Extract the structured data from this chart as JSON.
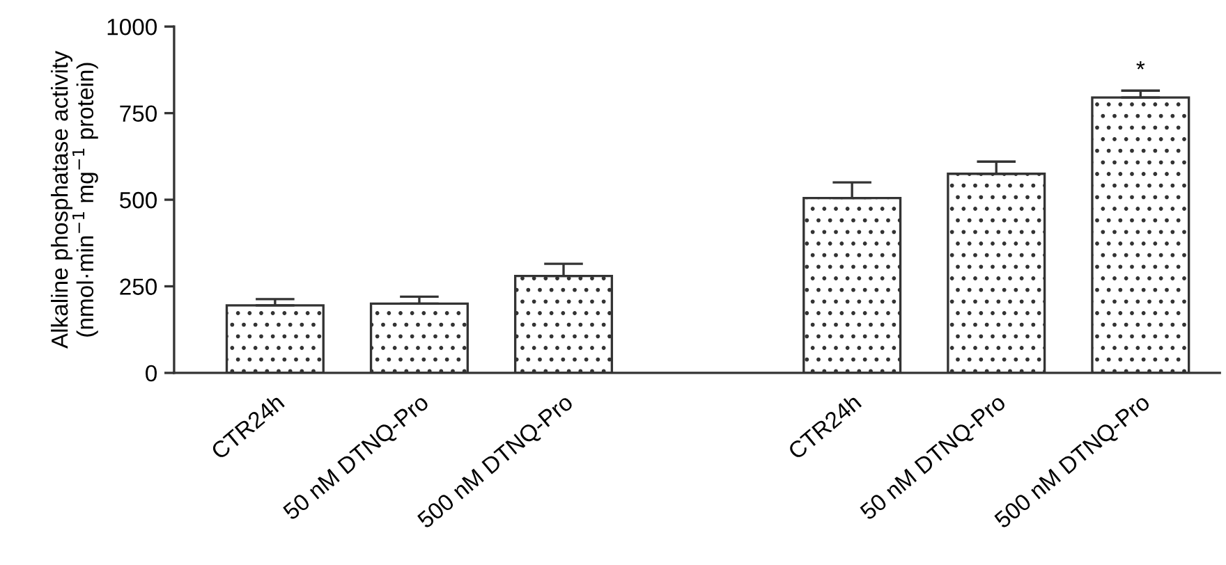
{
  "chart_data": {
    "type": "bar",
    "ylabel": "Alkaline phosphatase activity (nmol·min$^{−1}$ mg$^{−1}$ protein)",
    "categories": [
      "CTR24h",
      "50 nM DTNQ-Pro",
      "500 nM DTNQ-Pro",
      null,
      "CTR24h",
      "50 nM DTNQ-Pro",
      "500 nM DTNQ-Pro"
    ],
    "values": [
      195,
      200,
      280,
      null,
      505,
      575,
      795
    ],
    "errors": [
      [
        195,
        213
      ],
      [
        200,
        220
      ],
      [
        280,
        315
      ],
      null,
      [
        505,
        550
      ],
      [
        575,
        610
      ],
      [
        795,
        815
      ]
    ],
    "color": "#333333",
    "ylim": [
      0,
      1000
    ],
    "yticks": [
      0,
      250,
      500,
      750,
      1000
    ],
    "annotations": [
      "*"
    ],
    "grid": false,
    "legend": false
  }
}
